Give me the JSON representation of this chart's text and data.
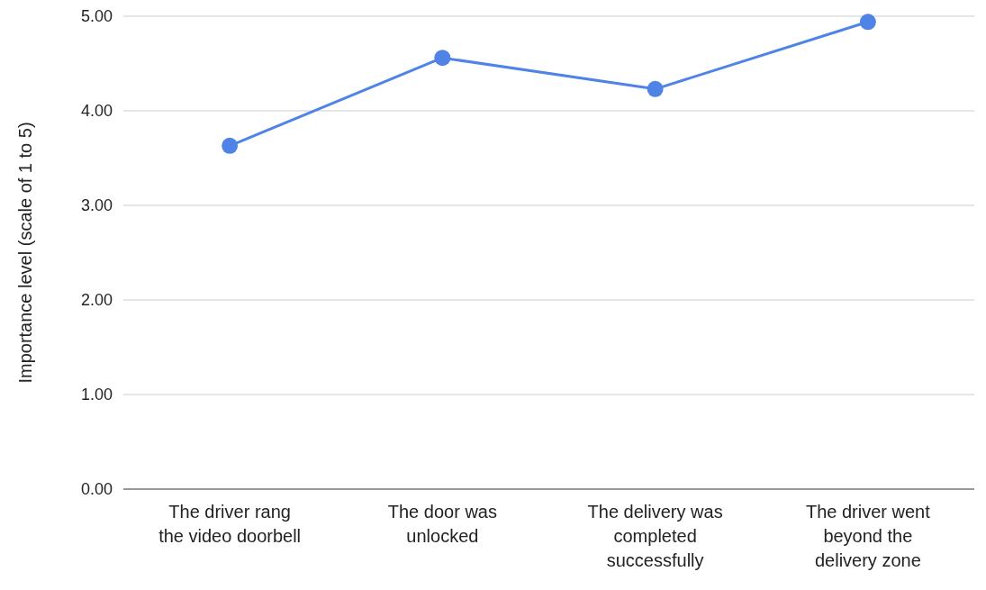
{
  "chart_data": {
    "type": "line",
    "ylabel": "Importance level (scale of 1 to 5)",
    "categories": [
      "The driver rang the video doorbell",
      "The door was unlocked",
      "The delivery was completed successfully",
      "The driver went beyond the delivery zone"
    ],
    "series": [
      {
        "color": "#4f84e6",
        "values": [
          3.63,
          4.56,
          4.23,
          4.94
        ]
      }
    ],
    "ylim": [
      0,
      5
    ],
    "yticks": [
      {
        "value": 0,
        "label": "0.00"
      },
      {
        "value": 1,
        "label": "1.00"
      },
      {
        "value": 2,
        "label": "2.00"
      },
      {
        "value": 3,
        "label": "3.00"
      },
      {
        "value": 4,
        "label": "4.00"
      },
      {
        "value": 5,
        "label": "5.00"
      }
    ],
    "grid": "y",
    "marker": "circle",
    "line_style": "solid"
  }
}
